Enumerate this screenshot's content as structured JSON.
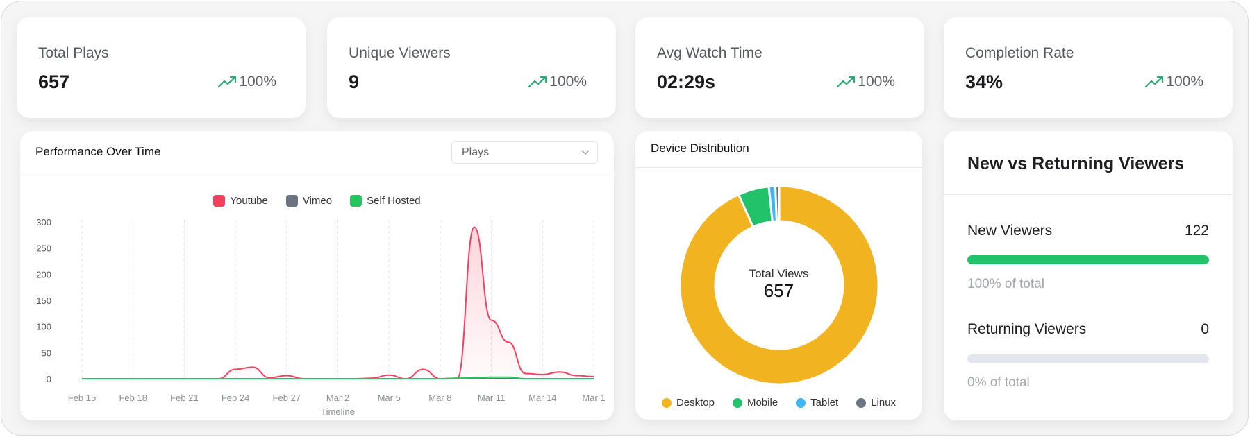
{
  "stats": [
    {
      "label": "Total Plays",
      "value": "657",
      "trend": "100%",
      "trend_icon": "trending-up-icon"
    },
    {
      "label": "Unique Viewers",
      "value": "9",
      "trend": "100%",
      "trend_icon": "trending-up-icon"
    },
    {
      "label": "Avg Watch Time",
      "value": "02:29s",
      "trend": "100%",
      "trend_icon": "trending-up-icon"
    },
    {
      "label": "Completion Rate",
      "value": "34%",
      "trend": "100%",
      "trend_icon": "trending-up-icon"
    }
  ],
  "performance": {
    "title": "Performance Over Time",
    "metric_select": "Plays"
  },
  "device": {
    "title": "Device Distribution",
    "center_label": "Total Views",
    "center_value": "657"
  },
  "viewers": {
    "title": "New vs Returning Viewers",
    "items": [
      {
        "label": "New Viewers",
        "value": "122",
        "fraction": 1.0,
        "pct_text": "100% of total"
      },
      {
        "label": "Returning Viewers",
        "value": "0",
        "fraction": 0,
        "pct_text": "0% of total"
      }
    ]
  },
  "colors": {
    "accent_green": "#22c26a",
    "trend_green": "#2bab73"
  },
  "chart_data": [
    {
      "type": "area",
      "xlabel": "Timeline",
      "ylabel": "",
      "ylim": [
        0,
        300
      ],
      "yticks": [
        "0",
        "50",
        "100",
        "150",
        "200",
        "250",
        "300"
      ],
      "xticks": [
        "Feb 15",
        "Feb 18",
        "Feb 21",
        "Feb 24",
        "Feb 27",
        "Mar 2",
        "Mar 5",
        "Mar 8",
        "Mar 11",
        "Mar 14",
        "Mar 1"
      ],
      "x": [
        "Feb 15",
        "Feb 16",
        "Feb 17",
        "Feb 18",
        "Feb 19",
        "Feb 20",
        "Feb 21",
        "Feb 22",
        "Feb 23",
        "Feb 24",
        "Feb 25",
        "Feb 26",
        "Feb 27",
        "Feb 28",
        "Mar 1",
        "Mar 2",
        "Mar 3",
        "Mar 4",
        "Mar 5",
        "Mar 6",
        "Mar 7",
        "Mar 8",
        "Mar 9",
        "Mar 10",
        "Mar 11",
        "Mar 12",
        "Mar 13",
        "Mar 14",
        "Mar 15",
        "Mar 16",
        "Mar 17"
      ],
      "grid": "vertical",
      "legend": "top",
      "series": [
        {
          "name": "Youtube",
          "color": "#f43f5e",
          "values": [
            0,
            0,
            0,
            0,
            0,
            0,
            0,
            0,
            0,
            18,
            22,
            2,
            6,
            0,
            0,
            0,
            0,
            1,
            7,
            0,
            18,
            0,
            1,
            290,
            112,
            70,
            10,
            8,
            13,
            6,
            4
          ]
        },
        {
          "name": "Vimeo",
          "color": "#6b7280",
          "values": [
            0,
            0,
            0,
            0,
            0,
            0,
            0,
            0,
            0,
            0,
            0,
            0,
            0,
            0,
            0,
            0,
            0,
            0,
            0,
            0,
            0,
            0,
            0,
            0,
            0,
            0,
            0,
            0,
            0,
            0,
            0
          ]
        },
        {
          "name": "Self Hosted",
          "color": "#22c55e",
          "values": [
            0,
            0,
            0,
            0,
            0,
            0,
            0,
            0,
            0,
            0,
            0,
            0,
            0,
            0,
            0,
            0,
            0,
            0,
            0,
            0,
            0,
            0,
            1,
            2,
            3,
            3,
            0,
            0,
            0,
            0,
            0
          ]
        }
      ]
    },
    {
      "type": "pie",
      "legend": "bottom",
      "categories": [
        "Desktop",
        "Mobile",
        "Tablet",
        "Linux"
      ],
      "values": [
        613,
        33,
        7,
        4
      ],
      "colors": [
        "#f2b320",
        "#22c26a",
        "#3fb6f2",
        "#6b7280"
      ]
    }
  ]
}
